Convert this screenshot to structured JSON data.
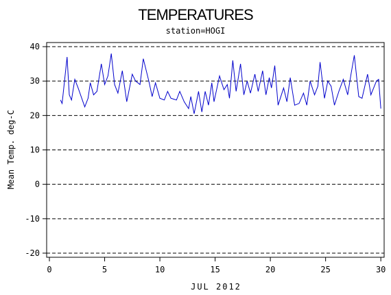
{
  "chart_data": {
    "type": "line",
    "title": "TEMPERATURES",
    "subtitle": "station=HOGI",
    "xlabel": "JUL 2012",
    "ylabel": "Mean Temp. deg-C",
    "x": [
      1,
      1.15,
      1.6,
      1.8,
      2,
      2.3,
      2.6,
      3.2,
      3.5,
      3.7,
      4,
      4.3,
      4.7,
      5,
      5.3,
      5.6,
      5.9,
      6.2,
      6.6,
      7,
      7.5,
      7.8,
      8.2,
      8.5,
      9,
      9.3,
      9.6,
      10,
      10.4,
      10.7,
      11,
      11.5,
      11.8,
      12.2,
      12.6,
      12.8,
      13.1,
      13.5,
      13.8,
      14.1,
      14.4,
      14.7,
      14.9,
      15.4,
      15.8,
      16.1,
      16.3,
      16.6,
      16.9,
      17.3,
      17.6,
      17.9,
      18.2,
      18.6,
      18.9,
      19.3,
      19.6,
      19.9,
      20.1,
      20.4,
      20.7,
      21.2,
      21.5,
      21.8,
      22.2,
      22.6,
      23,
      23.3,
      23.6,
      24,
      24.3,
      24.5,
      24.9,
      25.2,
      25.5,
      25.8,
      26.2,
      26.6,
      27,
      27.3,
      27.6,
      28,
      28.3,
      28.8,
      29.1,
      29.6,
      29.8,
      30
    ],
    "series": [
      {
        "name": "Mean Temp",
        "color": "#0000cc",
        "values": [
          24.5,
          23.5,
          37,
          26,
          24.5,
          30.5,
          28,
          22.5,
          25,
          29.5,
          26,
          27,
          35,
          29,
          31.5,
          38,
          29,
          26.5,
          33,
          24,
          32,
          30,
          29,
          36.5,
          30,
          25.5,
          29.5,
          25,
          24.5,
          27,
          25,
          24.5,
          27,
          24,
          22,
          25.5,
          20.5,
          27,
          21,
          27,
          23,
          29.5,
          24,
          31.5,
          27.5,
          29,
          25,
          36,
          27,
          35,
          26,
          30,
          26.5,
          32,
          27,
          33,
          26,
          31,
          28,
          34.5,
          23,
          28,
          24,
          31,
          23,
          23.5,
          26.5,
          23,
          30,
          26,
          28.5,
          35.5,
          25,
          30,
          28.5,
          23,
          27,
          30.5,
          26,
          32,
          37.5,
          25.5,
          25,
          32,
          26,
          30,
          30.5,
          22
        ]
      }
    ],
    "xlim": [
      -0.25,
      30.3
    ],
    "xticks": [
      0,
      5,
      10,
      15,
      20,
      25,
      30
    ],
    "ylim": [
      -21.2,
      41.2
    ],
    "yticks": [
      -20,
      -10,
      0,
      10,
      20,
      30,
      40
    ],
    "grid": true
  }
}
